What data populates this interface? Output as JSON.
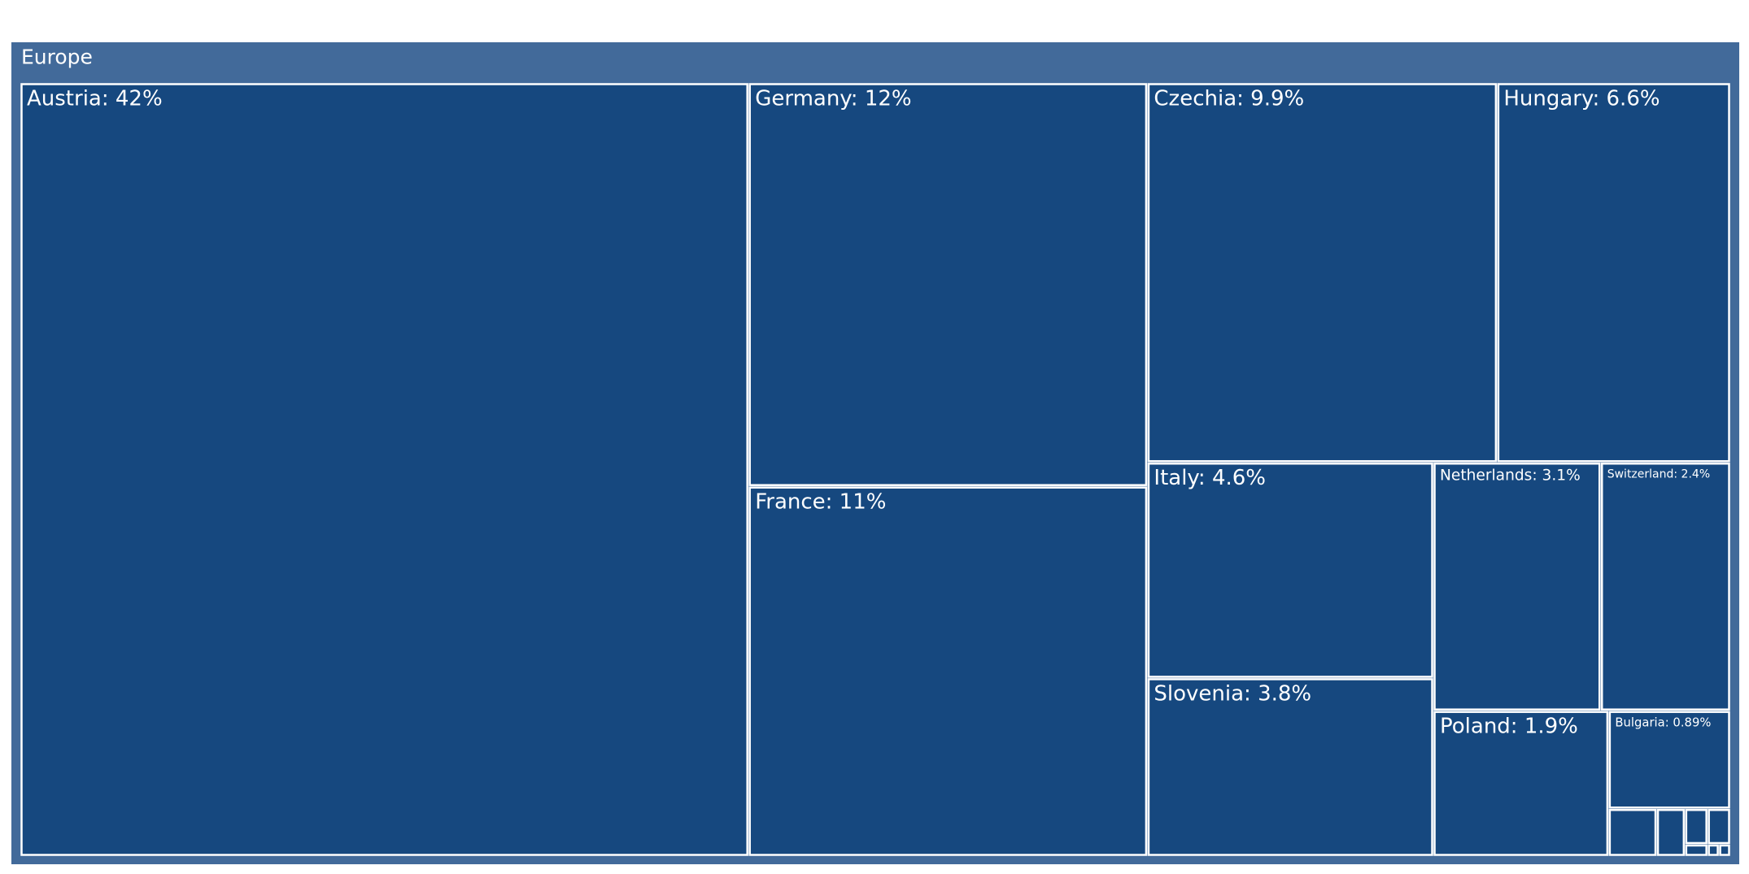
{
  "chart_data": {
    "type": "treemap",
    "root": "Europe",
    "root_color": "#426a9a",
    "color": "#16487f",
    "labels": [
      "Austria: 42%",
      "Germany: 12%",
      "France: 11%",
      "Czechia: 9.9%",
      "Hungary: 6.6%",
      "Italy: 4.6%",
      "Slovenia: 3.8%",
      "Netherlands: 3.1%",
      "Switzerland: 2.4%",
      "Poland: 1.9%",
      "Bulgaria: 0.89%",
      null,
      null,
      null,
      null,
      null,
      null,
      null
    ],
    "values": [
      42,
      12,
      11,
      9.9,
      6.6,
      4.6,
      3.8,
      3.1,
      2.4,
      1.9,
      0.89,
      0.17,
      0.1,
      0.06,
      0.06,
      0.02,
      0.01,
      0.01
    ]
  }
}
